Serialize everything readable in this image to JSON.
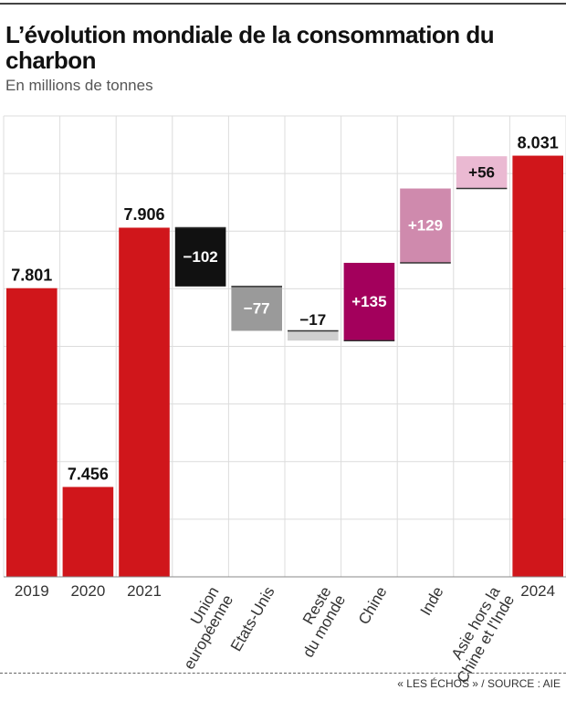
{
  "chart_data": {
    "type": "waterfall",
    "title": "L’évolution mondiale de la consommation du charbon",
    "subtitle": "En millions de tonnes",
    "source": "« LES ÉCHOS » / SOURCE : AIE",
    "categories": [
      "2019",
      "2020",
      "2021",
      "Union\neuropéenne",
      "Etats-Unis",
      "Reste\ndu monde",
      "Chine",
      "Inde",
      "Asie hors la\nChine et l'Inde",
      "2024"
    ],
    "values": [
      7801,
      7456,
      7906,
      -102,
      -77,
      -17,
      135,
      129,
      56,
      8031
    ],
    "value_labels": [
      "7.801",
      "7.456",
      "7.906",
      "−102",
      "−77",
      "−17",
      "+135",
      "+129",
      "+56",
      "8.031"
    ],
    "measure": [
      "absolute",
      "absolute",
      "absolute",
      "relative",
      "relative",
      "relative",
      "relative",
      "relative",
      "relative",
      "absolute"
    ],
    "colors": [
      "#d0161b",
      "#d0161b",
      "#d0161b",
      "#111111",
      "#9a9a9a",
      "#cfcfcf",
      "#a3005c",
      "#cf8aad",
      "#eab9d2",
      "#d0161b"
    ],
    "ylim": [
      7300,
      8100
    ],
    "yticks": [
      7300,
      7400,
      7500,
      7600,
      7700,
      7800,
      7900,
      8000,
      8100
    ],
    "grid": true
  }
}
